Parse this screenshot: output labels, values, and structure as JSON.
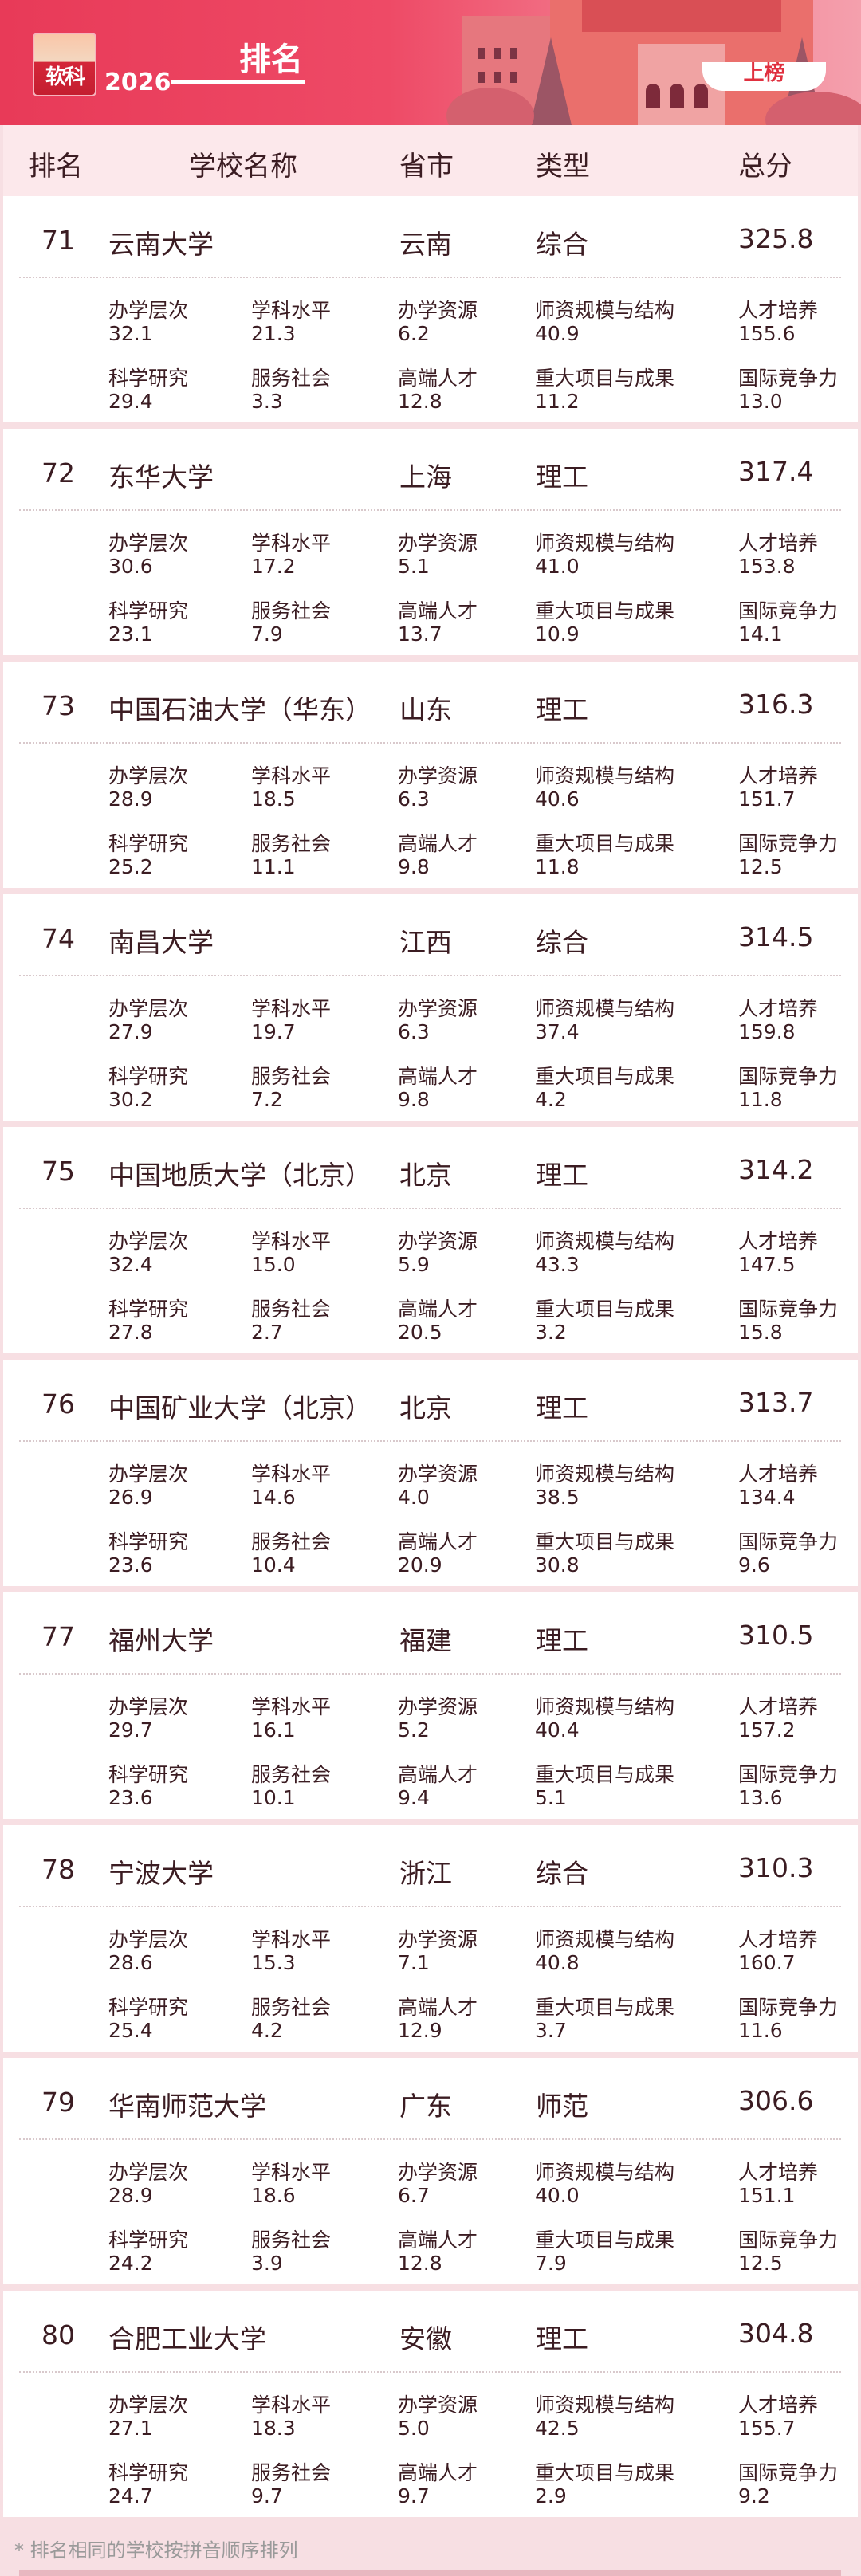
{
  "banner": {
    "logo_text": "软科",
    "year": "2026",
    "title": "排名",
    "badge": "上榜"
  },
  "colors": {
    "accent": "#e83a58",
    "header_bg": "#fce8eb",
    "text": "#3b1c22"
  },
  "table_header": {
    "rank": "排名",
    "name": "学校名称",
    "province": "省市",
    "type": "类型",
    "total": "总分"
  },
  "metric_labels": [
    "办学层次",
    "学科水平",
    "办学资源",
    "师资规模与结构",
    "人才培养",
    "科学研究",
    "服务社会",
    "高端人才",
    "重大项目与成果",
    "国际竞争力"
  ],
  "rows": [
    {
      "rank": "71",
      "name": "云南大学",
      "province": "云南",
      "type": "综合",
      "total": "325.8",
      "scores": [
        "32.1",
        "21.3",
        "6.2",
        "40.9",
        "155.6",
        "29.4",
        "3.3",
        "12.8",
        "11.2",
        "13.0"
      ]
    },
    {
      "rank": "72",
      "name": "东华大学",
      "province": "上海",
      "type": "理工",
      "total": "317.4",
      "scores": [
        "30.6",
        "17.2",
        "5.1",
        "41.0",
        "153.8",
        "23.1",
        "7.9",
        "13.7",
        "10.9",
        "14.1"
      ]
    },
    {
      "rank": "73",
      "name": "中国石油大学（华东）",
      "province": "山东",
      "type": "理工",
      "total": "316.3",
      "scores": [
        "28.9",
        "18.5",
        "6.3",
        "40.6",
        "151.7",
        "25.2",
        "11.1",
        "9.8",
        "11.8",
        "12.5"
      ]
    },
    {
      "rank": "74",
      "name": "南昌大学",
      "province": "江西",
      "type": "综合",
      "total": "314.5",
      "scores": [
        "27.9",
        "19.7",
        "6.3",
        "37.4",
        "159.8",
        "30.2",
        "7.2",
        "9.8",
        "4.2",
        "11.8"
      ]
    },
    {
      "rank": "75",
      "name": "中国地质大学（北京）",
      "province": "北京",
      "type": "理工",
      "total": "314.2",
      "scores": [
        "32.4",
        "15.0",
        "5.9",
        "43.3",
        "147.5",
        "27.8",
        "2.7",
        "20.5",
        "3.2",
        "15.8"
      ]
    },
    {
      "rank": "76",
      "name": "中国矿业大学（北京）",
      "province": "北京",
      "type": "理工",
      "total": "313.7",
      "scores": [
        "26.9",
        "14.6",
        "4.0",
        "38.5",
        "134.4",
        "23.6",
        "10.4",
        "20.9",
        "30.8",
        "9.6"
      ]
    },
    {
      "rank": "77",
      "name": "福州大学",
      "province": "福建",
      "type": "理工",
      "total": "310.5",
      "scores": [
        "29.7",
        "16.1",
        "5.2",
        "40.4",
        "157.2",
        "23.6",
        "10.1",
        "9.4",
        "5.1",
        "13.6"
      ]
    },
    {
      "rank": "78",
      "name": "宁波大学",
      "province": "浙江",
      "type": "综合",
      "total": "310.3",
      "scores": [
        "28.6",
        "15.3",
        "7.1",
        "40.8",
        "160.7",
        "25.4",
        "4.2",
        "12.9",
        "3.7",
        "11.6"
      ]
    },
    {
      "rank": "79",
      "name": "华南师范大学",
      "province": "广东",
      "type": "师范",
      "total": "306.6",
      "scores": [
        "28.9",
        "18.6",
        "6.7",
        "40.0",
        "151.1",
        "24.2",
        "3.9",
        "12.8",
        "7.9",
        "12.5"
      ]
    },
    {
      "rank": "80",
      "name": "合肥工业大学",
      "province": "安徽",
      "type": "理工",
      "total": "304.8",
      "scores": [
        "27.1",
        "18.3",
        "5.0",
        "42.5",
        "155.7",
        "24.7",
        "9.7",
        "9.7",
        "2.9",
        "9.2"
      ]
    }
  ],
  "footnote": "* 排名相同的学校按拼音顺序排列"
}
